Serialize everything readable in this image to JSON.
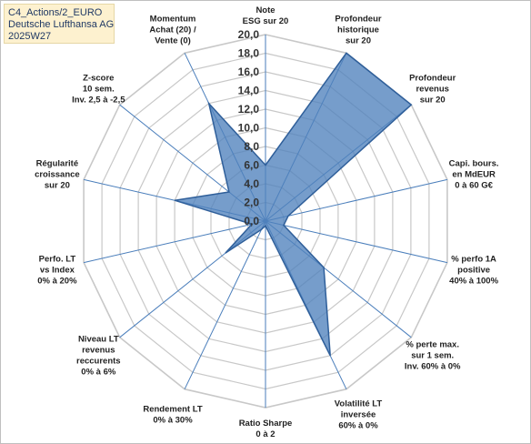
{
  "info": {
    "line1": "C4_Actions/2_EURO",
    "line2": "Deutsche Lufthansa AG",
    "line3": "2025W27"
  },
  "chart_data": {
    "type": "radar",
    "rlim": [
      0,
      20
    ],
    "ticks": [
      "0,0",
      "2,0",
      "4,0",
      "6,0",
      "8,0",
      "10,0",
      "12,0",
      "14,0",
      "16,0",
      "18,0",
      "20,0"
    ],
    "axes": [
      [
        "Note",
        "ESG sur 20"
      ],
      [
        "Profondeur",
        "historique",
        "sur 20"
      ],
      [
        "Profondeur",
        "revenus",
        "sur 20"
      ],
      [
        "Capi. bours.",
        "en MdEUR",
        "0 à 60 G€"
      ],
      [
        "% perfo 1A",
        "positive",
        "40% à 100%"
      ],
      [
        "% perte max.",
        "sur 1 sem.",
        "Inv. 60% à 0%"
      ],
      [
        "Volatilité LT",
        "inversée",
        "60% à 0%"
      ],
      [
        "Ratio Sharpe",
        "0 à 2"
      ],
      [
        "Rendement LT",
        "0% à 30%"
      ],
      [
        "Niveau LT",
        "revenus",
        "reccurents",
        "0% à 6%"
      ],
      [
        "Perfo. LT",
        "vs Index",
        "0% à 20%"
      ],
      [
        "Régularité",
        "croissance",
        "sur 20"
      ],
      [
        "Z-score",
        "10 sem.",
        "Inv. 2,5 à -2,5"
      ],
      [
        "Momentum",
        "Achat (20) /",
        "Vente (0)"
      ]
    ],
    "values": [
      6.0,
      20.0,
      20.0,
      2.5,
      2.0,
      8.0,
      16.0,
      0.5,
      1.0,
      5.5,
      1.5,
      10.0,
      5.0,
      14.0
    ],
    "fill_color": "#4f81bd",
    "grid": true
  }
}
